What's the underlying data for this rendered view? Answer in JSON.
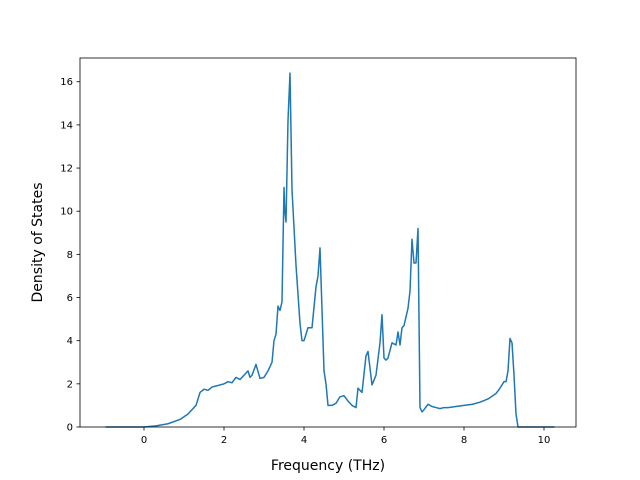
{
  "chart_data": {
    "type": "line",
    "title": "",
    "xlabel": "Frequency (THz)",
    "ylabel": "Density of States",
    "xlim": [
      -1.6,
      10.8
    ],
    "ylim": [
      0,
      17.1
    ],
    "x_ticks": [
      0,
      2,
      4,
      6,
      8,
      10
    ],
    "y_ticks": [
      0,
      2,
      4,
      6,
      8,
      10,
      12,
      14,
      16
    ],
    "grid": false,
    "legend": "none",
    "series": [
      {
        "color": "#1f77b4",
        "x": [
          -0.95,
          0.0,
          0.3,
          0.6,
          0.9,
          1.1,
          1.3,
          1.4,
          1.5,
          1.6,
          1.7,
          1.8,
          1.9,
          2.0,
          2.1,
          2.2,
          2.3,
          2.4,
          2.5,
          2.6,
          2.65,
          2.7,
          2.8,
          2.9,
          3.0,
          3.1,
          3.2,
          3.25,
          3.3,
          3.35,
          3.4,
          3.45,
          3.5,
          3.52,
          3.55,
          3.6,
          3.65,
          3.7,
          3.8,
          3.9,
          3.95,
          4.0,
          4.1,
          4.2,
          4.3,
          4.35,
          4.4,
          4.5,
          4.55,
          4.6,
          4.7,
          4.8,
          4.9,
          5.0,
          5.1,
          5.2,
          5.3,
          5.35,
          5.45,
          5.55,
          5.6,
          5.7,
          5.8,
          5.9,
          5.95,
          6.0,
          6.05,
          6.1,
          6.2,
          6.3,
          6.35,
          6.4,
          6.45,
          6.5,
          6.6,
          6.65,
          6.7,
          6.75,
          6.8,
          6.85,
          6.9,
          6.95,
          7.0,
          7.1,
          7.2,
          7.3,
          7.4,
          7.5,
          7.6,
          7.8,
          8.0,
          8.2,
          8.4,
          8.6,
          8.8,
          8.9,
          9.0,
          9.05,
          9.1,
          9.15,
          9.2,
          9.25,
          9.3,
          9.35,
          9.4,
          10.25
        ],
        "y": [
          0,
          0,
          0.05,
          0.15,
          0.35,
          0.6,
          1.0,
          1.6,
          1.75,
          1.7,
          1.85,
          1.9,
          1.95,
          2.0,
          2.1,
          2.05,
          2.3,
          2.2,
          2.4,
          2.6,
          2.3,
          2.4,
          2.9,
          2.25,
          2.3,
          2.6,
          3.0,
          4.0,
          4.3,
          5.6,
          5.4,
          5.8,
          11.1,
          10.0,
          9.5,
          14.2,
          16.4,
          11.0,
          7.5,
          4.8,
          4.0,
          4.0,
          4.6,
          4.6,
          6.5,
          7.0,
          8.3,
          2.6,
          2.0,
          1.0,
          1.0,
          1.1,
          1.4,
          1.45,
          1.2,
          1.0,
          0.9,
          1.8,
          1.6,
          3.3,
          3.5,
          1.95,
          2.4,
          3.9,
          5.2,
          3.2,
          3.1,
          3.2,
          3.9,
          3.8,
          4.4,
          3.8,
          4.6,
          4.7,
          5.5,
          6.3,
          8.7,
          7.6,
          7.6,
          9.2,
          0.9,
          0.7,
          0.8,
          1.05,
          0.95,
          0.9,
          0.85,
          0.9,
          0.9,
          0.95,
          1.0,
          1.05,
          1.15,
          1.3,
          1.55,
          1.8,
          2.1,
          2.1,
          2.6,
          4.1,
          3.9,
          2.4,
          0.6,
          0.0,
          0.0,
          0.0
        ]
      }
    ]
  }
}
